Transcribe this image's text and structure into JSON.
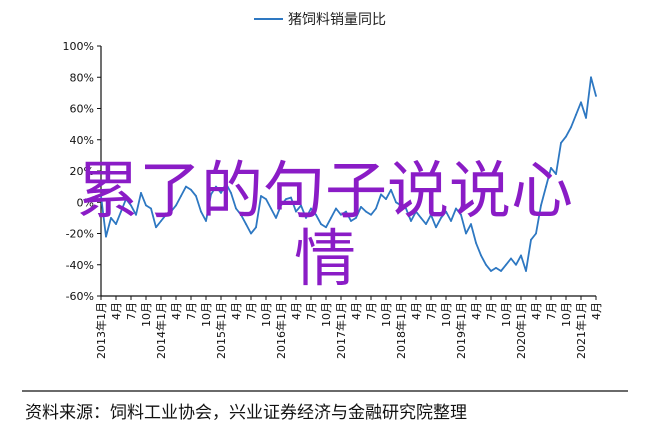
{
  "legend": {
    "label": "猪饲料销量同比",
    "color": "#2e78c2"
  },
  "overlay": {
    "line1": "累了的句子说说心",
    "line2": "情",
    "color": "#8a1cc6"
  },
  "source": "资料来源：饲料工业协会，兴业证券经济与金融研究院整理",
  "chart_data": {
    "type": "line",
    "title": "",
    "ylabel": "",
    "xlabel": "",
    "ylim": [
      -60,
      100
    ],
    "yticks": [
      "-60%",
      "-40%",
      "-20%",
      "0%",
      "20%",
      "40%",
      "60%",
      "80%",
      "100%"
    ],
    "ytick_values": [
      -60,
      -40,
      -20,
      0,
      20,
      40,
      60,
      80,
      100
    ],
    "x_tick_labels": [
      "2013-01",
      "4",
      "7",
      "10",
      "2014-01",
      "4",
      "7",
      "10",
      "2015-01",
      "4",
      "7",
      "10",
      "2016-01",
      "4",
      "7",
      "10",
      "2017-01",
      "4",
      "7",
      "10",
      "2018-01",
      "4",
      "7",
      "10",
      "2019-01",
      "4",
      "7",
      "10",
      "2020-01",
      "4",
      "7",
      "10",
      "2021-01",
      "4"
    ],
    "x_tick_labels_display": [
      "2013-01",
      "4",
      "7",
      "10",
      "2014-01",
      "4",
      "7",
      "10",
      "2015-01",
      "4",
      "7",
      "10",
      "2016-01",
      "4",
      "7",
      "10",
      "2017-01",
      "4",
      "7",
      "10",
      "2018-01",
      "4",
      "7",
      "10",
      "2019-01",
      "4",
      "7",
      "10",
      "2020-01",
      "4",
      "7",
      "10",
      "2021-01",
      "4"
    ],
    "x_tick_labels_printed": [
      "2013年1月",
      "4月",
      "7月",
      "10月",
      "2014年1月",
      "4月",
      "7月",
      "10月",
      "2015年1月",
      "4月",
      "7月",
      "10月",
      "2016年1月",
      "4月",
      "7月",
      "10月",
      "2017年1月",
      "4月",
      "7月",
      "10月",
      "2018年1月",
      "4月",
      "7月",
      "10月",
      "2019年1月",
      "4月",
      "7月",
      "10月",
      "2020年1月",
      "4月",
      "7月",
      "10月",
      "2021年1月",
      "4月"
    ],
    "series": [
      {
        "name": "猪饲料销量同比",
        "color": "#2e78c2",
        "x": [
          "2013-01",
          "2013-02",
          "2013-03",
          "2013-04",
          "2013-05",
          "2013-06",
          "2013-07",
          "2013-08",
          "2013-09",
          "2013-10",
          "2013-11",
          "2013-12",
          "2014-01",
          "2014-02",
          "2014-03",
          "2014-04",
          "2014-05",
          "2014-06",
          "2014-07",
          "2014-08",
          "2014-09",
          "2014-10",
          "2014-11",
          "2014-12",
          "2015-01",
          "2015-02",
          "2015-03",
          "2015-04",
          "2015-05",
          "2015-06",
          "2015-07",
          "2015-08",
          "2015-09",
          "2015-10",
          "2015-11",
          "2015-12",
          "2016-01",
          "2016-02",
          "2016-03",
          "2016-04",
          "2016-05",
          "2016-06",
          "2016-07",
          "2016-08",
          "2016-09",
          "2016-10",
          "2016-11",
          "2016-12",
          "2017-01",
          "2017-02",
          "2017-03",
          "2017-04",
          "2017-05",
          "2017-06",
          "2017-07",
          "2017-08",
          "2017-09",
          "2017-10",
          "2017-11",
          "2017-12",
          "2018-01",
          "2018-02",
          "2018-03",
          "2018-04",
          "2018-05",
          "2018-06",
          "2018-07",
          "2018-08",
          "2018-09",
          "2018-10",
          "2018-11",
          "2018-12",
          "2019-01",
          "2019-02",
          "2019-03",
          "2019-04",
          "2019-05",
          "2019-06",
          "2019-07",
          "2019-08",
          "2019-09",
          "2019-10",
          "2019-11",
          "2019-12",
          "2020-01",
          "2020-02",
          "2020-03",
          "2020-04",
          "2020-05",
          "2020-06",
          "2020-07",
          "2020-08",
          "2020-09",
          "2020-10",
          "2020-11",
          "2020-12",
          "2021-01",
          "2021-02",
          "2021-03",
          "2021-04"
        ],
        "values": [
          4,
          -22,
          -10,
          -14,
          -6,
          2,
          -2,
          -8,
          6,
          -2,
          -4,
          -16,
          -12,
          -8,
          -6,
          -2,
          4,
          10,
          8,
          4,
          -6,
          -12,
          5,
          10,
          6,
          12,
          6,
          -4,
          -8,
          -14,
          -20,
          -16,
          4,
          2,
          -4,
          -10,
          -2,
          2,
          3,
          -6,
          -2,
          -10,
          -4,
          -8,
          -14,
          -16,
          -10,
          -4,
          -8,
          -6,
          -12,
          -10,
          -3,
          -6,
          -8,
          -4,
          5,
          2,
          8,
          0,
          -2,
          -4,
          -12,
          -6,
          -10,
          -14,
          -8,
          -16,
          -10,
          -6,
          -12,
          -4,
          -8,
          -20,
          -14,
          -26,
          -34,
          -40,
          -44,
          -42,
          -44,
          -40,
          -36,
          -40,
          -34,
          -44,
          -24,
          -20,
          -2,
          10,
          22,
          18,
          38,
          42,
          48,
          56,
          64,
          54,
          80,
          68
        ]
      }
    ],
    "grid": false,
    "legend_position": "top-center"
  }
}
